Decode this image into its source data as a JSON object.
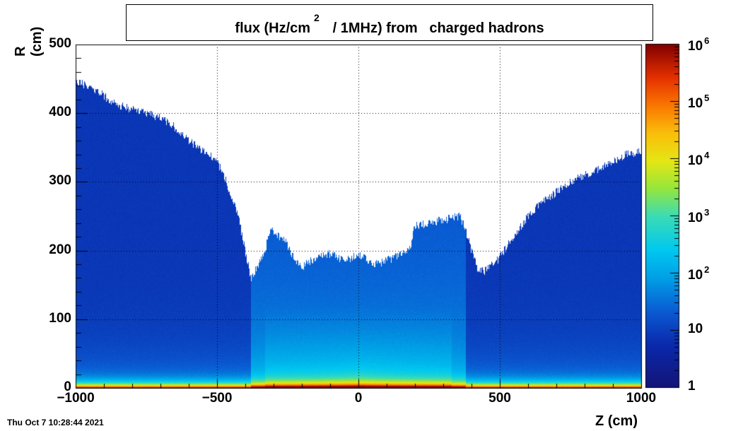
{
  "chart_data": {
    "type": "heatmap",
    "title_parts": [
      "flux (Hz/cm",
      "2",
      " / 1MHz) from   charged hadrons"
    ],
    "xlabel": "Z (cm)",
    "ylabel": "R (cm)",
    "xlim": [
      -1000,
      1000
    ],
    "ylim": [
      0,
      500
    ],
    "x_ticks": [
      -1000,
      -500,
      0,
      500,
      1000
    ],
    "x_tick_labels": [
      "−1000",
      "−500",
      "0",
      "500",
      "1000"
    ],
    "y_ticks": [
      0,
      100,
      200,
      300,
      400,
      500
    ],
    "y_tick_labels": [
      "0",
      "100",
      "200",
      "300",
      "400",
      "500"
    ],
    "grid": true,
    "colorbar": {
      "scale": "log",
      "range": [
        1,
        1000000
      ],
      "labels": [
        {
          "value": 1,
          "base": "1",
          "exp": ""
        },
        {
          "value": 10,
          "base": "10",
          "exp": ""
        },
        {
          "value": 100,
          "base": "10",
          "exp": "2"
        },
        {
          "value": 1000,
          "base": "10",
          "exp": "3"
        },
        {
          "value": 10000,
          "base": "10",
          "exp": "4"
        },
        {
          "value": 100000,
          "base": "10",
          "exp": "5"
        },
        {
          "value": 1000000,
          "base": "10",
          "exp": "6"
        }
      ]
    },
    "boundary": [
      [
        -1000,
        445
      ],
      [
        -950,
        440
      ],
      [
        -900,
        425
      ],
      [
        -850,
        412
      ],
      [
        -800,
        405
      ],
      [
        -750,
        400
      ],
      [
        -700,
        393
      ],
      [
        -650,
        380
      ],
      [
        -600,
        360
      ],
      [
        -550,
        345
      ],
      [
        -500,
        330
      ],
      [
        -475,
        310
      ],
      [
        -450,
        280
      ],
      [
        -425,
        250
      ],
      [
        -400,
        200
      ],
      [
        -380,
        160
      ],
      [
        -360,
        175
      ],
      [
        -330,
        200
      ],
      [
        -310,
        235
      ],
      [
        -290,
        225
      ],
      [
        -260,
        215
      ],
      [
        -230,
        190
      ],
      [
        -200,
        175
      ],
      [
        -150,
        190
      ],
      [
        -100,
        195
      ],
      [
        -50,
        185
      ],
      [
        0,
        195
      ],
      [
        50,
        180
      ],
      [
        100,
        185
      ],
      [
        150,
        195
      ],
      [
        180,
        200
      ],
      [
        200,
        235
      ],
      [
        250,
        240
      ],
      [
        300,
        245
      ],
      [
        360,
        250
      ],
      [
        380,
        230
      ],
      [
        400,
        200
      ],
      [
        420,
        175
      ],
      [
        450,
        170
      ],
      [
        500,
        190
      ],
      [
        550,
        220
      ],
      [
        600,
        250
      ],
      [
        650,
        270
      ],
      [
        700,
        285
      ],
      [
        750,
        300
      ],
      [
        800,
        310
      ],
      [
        850,
        318
      ],
      [
        900,
        330
      ],
      [
        950,
        340
      ],
      [
        1000,
        345
      ]
    ]
  },
  "footer": "Thu Oct  7 10:28:44 2021"
}
